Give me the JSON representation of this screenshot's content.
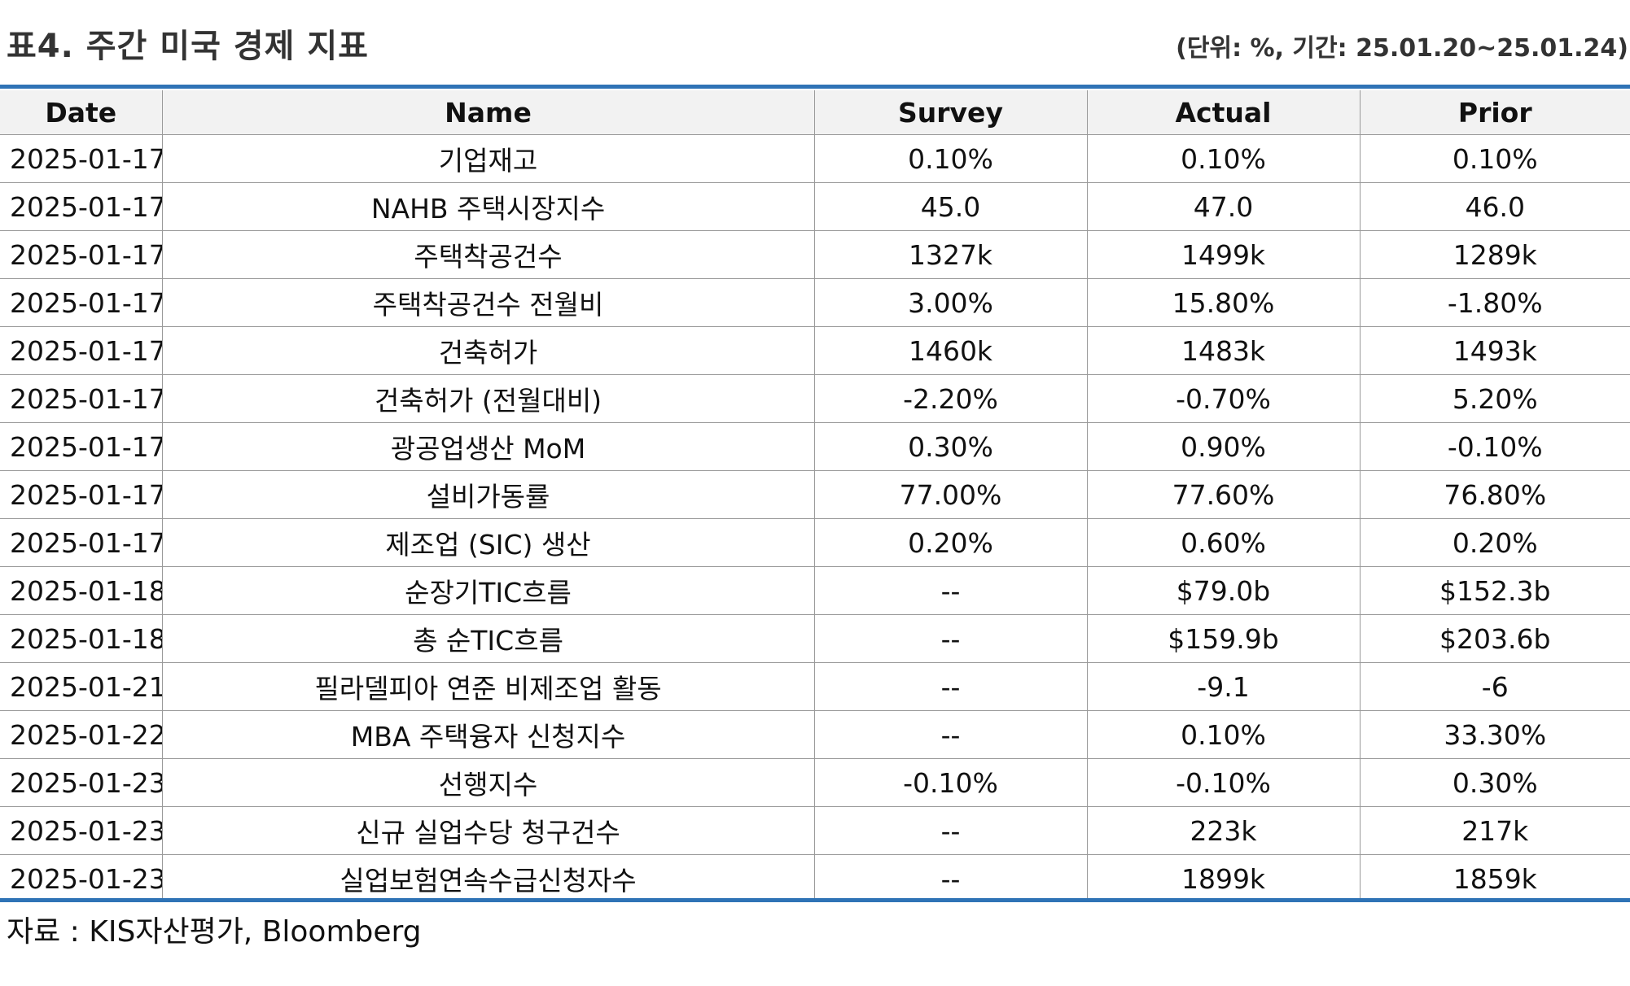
{
  "header": {
    "title": "표4. 주간 미국 경제 지표",
    "unit_note": "(단위: %, 기간: 25.01.20~25.01.24)"
  },
  "table": {
    "columns": [
      "Date",
      "Name",
      "Survey",
      "Actual",
      "Prior"
    ],
    "rows": [
      [
        "2025-01-17",
        "기업재고",
        "0.10%",
        "0.10%",
        "0.10%"
      ],
      [
        "2025-01-17",
        "NAHB 주택시장지수",
        "45.0",
        "47.0",
        "46.0"
      ],
      [
        "2025-01-17",
        "주택착공건수",
        "1327k",
        "1499k",
        "1289k"
      ],
      [
        "2025-01-17",
        "주택착공건수 전월비",
        "3.00%",
        "15.80%",
        "-1.80%"
      ],
      [
        "2025-01-17",
        "건축허가",
        "1460k",
        "1483k",
        "1493k"
      ],
      [
        "2025-01-17",
        "건축허가 (전월대비)",
        "-2.20%",
        "-0.70%",
        "5.20%"
      ],
      [
        "2025-01-17",
        "광공업생산 MoM",
        "0.30%",
        "0.90%",
        "-0.10%"
      ],
      [
        "2025-01-17",
        "설비가동률",
        "77.00%",
        "77.60%",
        "76.80%"
      ],
      [
        "2025-01-17",
        "제조업 (SIC) 생산",
        "0.20%",
        "0.60%",
        "0.20%"
      ],
      [
        "2025-01-18",
        "순장기TIC흐름",
        "--",
        "$79.0b",
        "$152.3b"
      ],
      [
        "2025-01-18",
        "총 순TIC흐름",
        "--",
        "$159.9b",
        "$203.6b"
      ],
      [
        "2025-01-21",
        "필라델피아 연준 비제조업 활동",
        "--",
        "-9.1",
        "-6"
      ],
      [
        "2025-01-22",
        "MBA 주택융자 신청지수",
        "--",
        "0.10%",
        "33.30%"
      ],
      [
        "2025-01-23",
        "선행지수",
        "-0.10%",
        "-0.10%",
        "0.30%"
      ],
      [
        "2025-01-23",
        "신규 실업수당 청구건수",
        "--",
        "223k",
        "217k"
      ],
      [
        "2025-01-23",
        "실업보험연속수급신청자수",
        "--",
        "1899k",
        "1859k"
      ]
    ]
  },
  "footer": {
    "source": "자료 : KIS자산평가, Bloomberg"
  },
  "colors": {
    "rule": "#2f73b6",
    "header_bg": "#f2f2f2",
    "grid": "#9a9a9a"
  }
}
